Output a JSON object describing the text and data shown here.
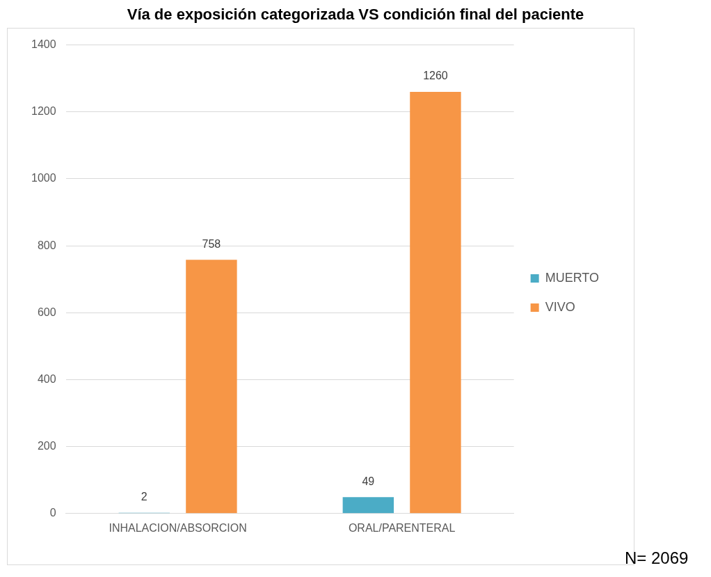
{
  "chart_data": {
    "type": "bar",
    "title": "Vía de exposición categorizada VS condición final del paciente",
    "categories": [
      "INHALACION/ABSORCION",
      "ORAL/PARENTERAL"
    ],
    "series": [
      {
        "name": "MUERTO",
        "color": "#4bacc6",
        "values": [
          2,
          49
        ]
      },
      {
        "name": "VIVO",
        "color": "#f79646",
        "values": [
          758,
          1260
        ]
      }
    ],
    "ylim": [
      0,
      1400
    ],
    "yticks": [
      0,
      200,
      400,
      600,
      800,
      1000,
      1200,
      1400
    ],
    "grid": "y",
    "legend": "right",
    "data_labels": true,
    "annotations": [
      "N= 2069"
    ]
  }
}
